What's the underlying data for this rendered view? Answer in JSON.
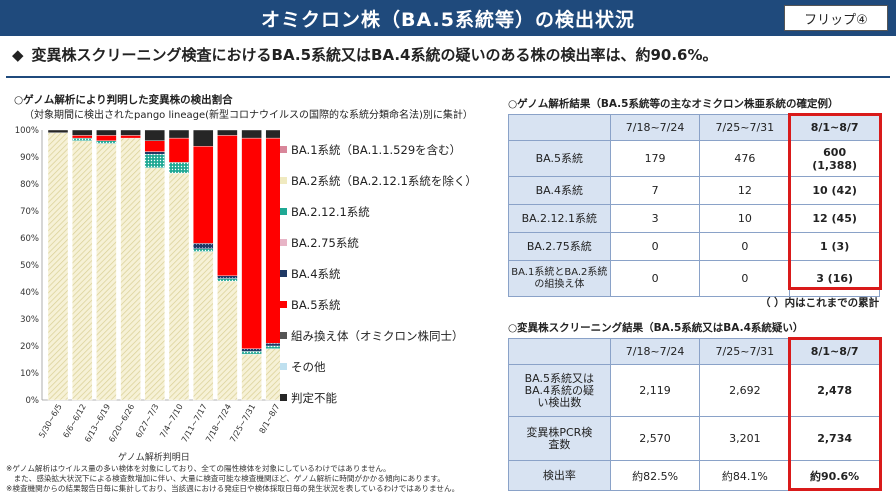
{
  "title": "オミクロン株（BA.5系統等）の検出状況",
  "flip_label": "フリップ④",
  "headline": {
    "bullet": "◆",
    "text": "変異株スクリーニング検査におけるBA.5系統又はBA.4系統の疑いのある株の検出率は、約90.6%。"
  },
  "chart_title": "○ゲノム解析により判明した変異株の検出割合",
  "chart_subtitle": "（対象期間に検出されたpango lineage(新型コロナウイルスの国際的な系統分類命名法)別に集計）",
  "chart_data": {
    "type": "bar",
    "stacked": true,
    "xlabel": "ゲノム解析判明日",
    "ylabel": "",
    "ylim": [
      0,
      100
    ],
    "y_ticks": [
      "0%",
      "10%",
      "20%",
      "30%",
      "40%",
      "50%",
      "60%",
      "70%",
      "80%",
      "90%",
      "100%"
    ],
    "categories": [
      "5/30~6/5",
      "6/6~6/12",
      "6/13~6/19",
      "6/20~6/26",
      "6/27~7/3",
      "7/4~7/10",
      "7/11~7/17",
      "7/18~7/24",
      "7/25~7/31",
      "8/1~8/7"
    ],
    "series": [
      {
        "name": "BA.1系統（BA.1.1.529を含む）",
        "color": "#d9869a",
        "pattern": "dots",
        "values": [
          0,
          0,
          0,
          0,
          0,
          0,
          0,
          0,
          0,
          0
        ]
      },
      {
        "name": "BA.2系統（BA.2.12.1系統を除く）",
        "color": "#f0eac0",
        "pattern": "diag",
        "values": [
          99,
          96,
          95,
          97,
          86,
          84,
          55,
          44,
          17,
          19
        ]
      },
      {
        "name": "BA.2.12.1系統",
        "color": "#1fa894",
        "pattern": "dots",
        "values": [
          0,
          1,
          1,
          0,
          5,
          4,
          1,
          1,
          1,
          1
        ]
      },
      {
        "name": "BA.2.75系統",
        "color": "#e8b4c6",
        "pattern": "diag",
        "values": [
          0,
          0,
          0,
          0,
          0,
          0,
          0,
          0,
          0,
          0
        ]
      },
      {
        "name": "BA.4系統",
        "color": "#1f3864",
        "pattern": "dots",
        "values": [
          0,
          0,
          0,
          0,
          1,
          0,
          2,
          1,
          1,
          1
        ]
      },
      {
        "name": "BA.5系統",
        "color": "#ff0000",
        "pattern": "solid",
        "values": [
          0,
          1,
          2,
          1,
          4,
          9,
          36,
          52,
          78,
          76
        ]
      },
      {
        "name": "組み換え体（オミクロン株同士）",
        "color": "#555555",
        "pattern": "dots",
        "values": [
          0,
          0,
          0,
          0,
          0,
          0,
          0,
          0,
          0,
          0
        ]
      },
      {
        "name": "その他",
        "color": "#bfe0ef",
        "pattern": "dots",
        "values": [
          0,
          0,
          0,
          0,
          0,
          0,
          0,
          0,
          0,
          0
        ]
      },
      {
        "name": "判定不能",
        "color": "#262626",
        "pattern": "solid",
        "values": [
          1,
          2,
          2,
          2,
          4,
          3,
          6,
          2,
          3,
          3
        ]
      }
    ]
  },
  "genome_table": {
    "title": "○ゲノム解析結果（BA.5系統等の主なオミクロン株亜系統の確定例）",
    "headers": [
      "",
      "7/18~7/24",
      "7/25~7/31",
      "8/1~8/7"
    ],
    "rows": [
      {
        "label": "BA.5系統",
        "v1": "179",
        "v2": "476",
        "v3": "600",
        "v3b": "(1,388)"
      },
      {
        "label": "BA.4系統",
        "v1": "7",
        "v2": "12",
        "v3": "10 (42)",
        "v3b": ""
      },
      {
        "label": "BA.2.12.1系統",
        "v1": "3",
        "v2": "10",
        "v3": "12 (45)",
        "v3b": ""
      },
      {
        "label": "BA.2.75系統",
        "v1": "0",
        "v2": "0",
        "v3": "1 (3)",
        "v3b": ""
      },
      {
        "label": "BA.1系統とBA.2系統の組換え体",
        "v1": "0",
        "v2": "0",
        "v3": "3 (16)",
        "v3b": ""
      }
    ],
    "footnote": "（ ）内はこれまでの累計"
  },
  "screening_table": {
    "title": "○変異株スクリーニング結果（BA.5系統又はBA.4系統疑い）",
    "headers": [
      "",
      "7/18~7/24",
      "7/25~7/31",
      "8/1~8/7"
    ],
    "rows": [
      {
        "label": "BA.5系統又はBA.4系統の疑い検出数",
        "v1": "2,119",
        "v2": "2,692",
        "v3": "2,478"
      },
      {
        "label": "変異株PCR検査数",
        "v1": "2,570",
        "v2": "3,201",
        "v3": "2,734"
      },
      {
        "label": "検出率",
        "v1": "約82.5%",
        "v2": "約84.1%",
        "v3": "約90.6%"
      }
    ]
  },
  "notes": [
    "※ゲノム解析はウイルス量の多い検体を対象にしており、全ての陽性検体を対象にしているわけではありません。",
    "　また、感染拡大状況下による検査数増加に伴い、大量に検査可能な検査機関ほど、ゲノム解析に時間がかかる傾向にあります。",
    "※検査機関からの結果報告日毎に集計しており、当該週における発症日や検体採取日毎の発生状況を表しているわけではありません。"
  ]
}
